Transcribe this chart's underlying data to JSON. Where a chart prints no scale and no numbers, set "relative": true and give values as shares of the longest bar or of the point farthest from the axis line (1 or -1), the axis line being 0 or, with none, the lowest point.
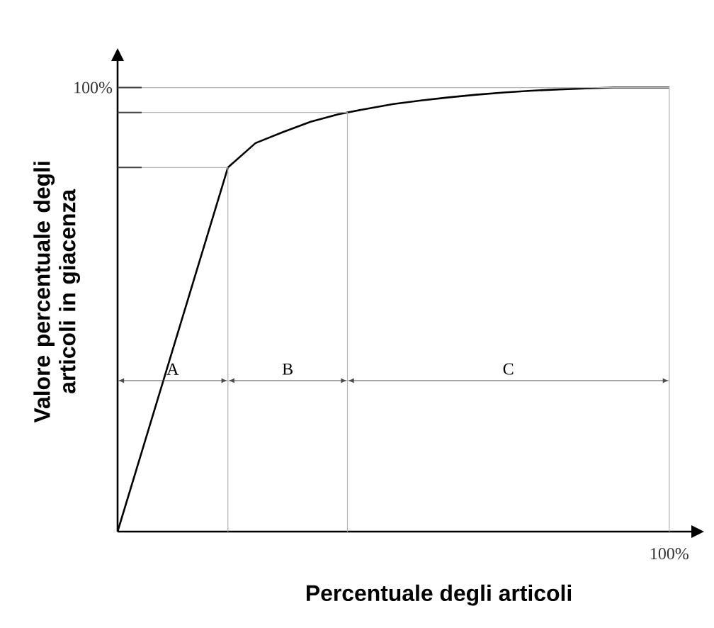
{
  "chart_data": {
    "type": "line",
    "relative": true,
    "xlabel": "Percentuale degli articoli",
    "ylabel": "Valore percentuale degli articoli in giacenza",
    "categories": [
      null,
      null,
      null,
      null,
      null,
      null,
      null,
      null,
      null,
      null,
      null,
      null,
      null,
      null,
      null,
      null,
      null,
      null,
      null,
      null,
      null
    ],
    "series": [
      {
        "color": "#000000",
        "values": [
          0,
          0.205,
          0.41,
          0.615,
          0.82,
          0.875,
          0.9,
          0.923,
          0.94,
          0.952,
          0.963,
          0.971,
          0.978,
          0.984,
          0.989,
          0.993,
          0.996,
          0.998,
          1,
          1,
          1
        ]
      }
    ],
    "ref_lines": [
      {
        "axis": "y",
        "value": 0.82,
        "color": "#b4b4b4"
      },
      {
        "axis": "y",
        "value": 0.944,
        "color": "#b4b4b4"
      }
    ],
    "annotations": [
      "A",
      "B",
      "C",
      "100%",
      "100%"
    ],
    "marker": "none",
    "line_style": "solid"
  }
}
